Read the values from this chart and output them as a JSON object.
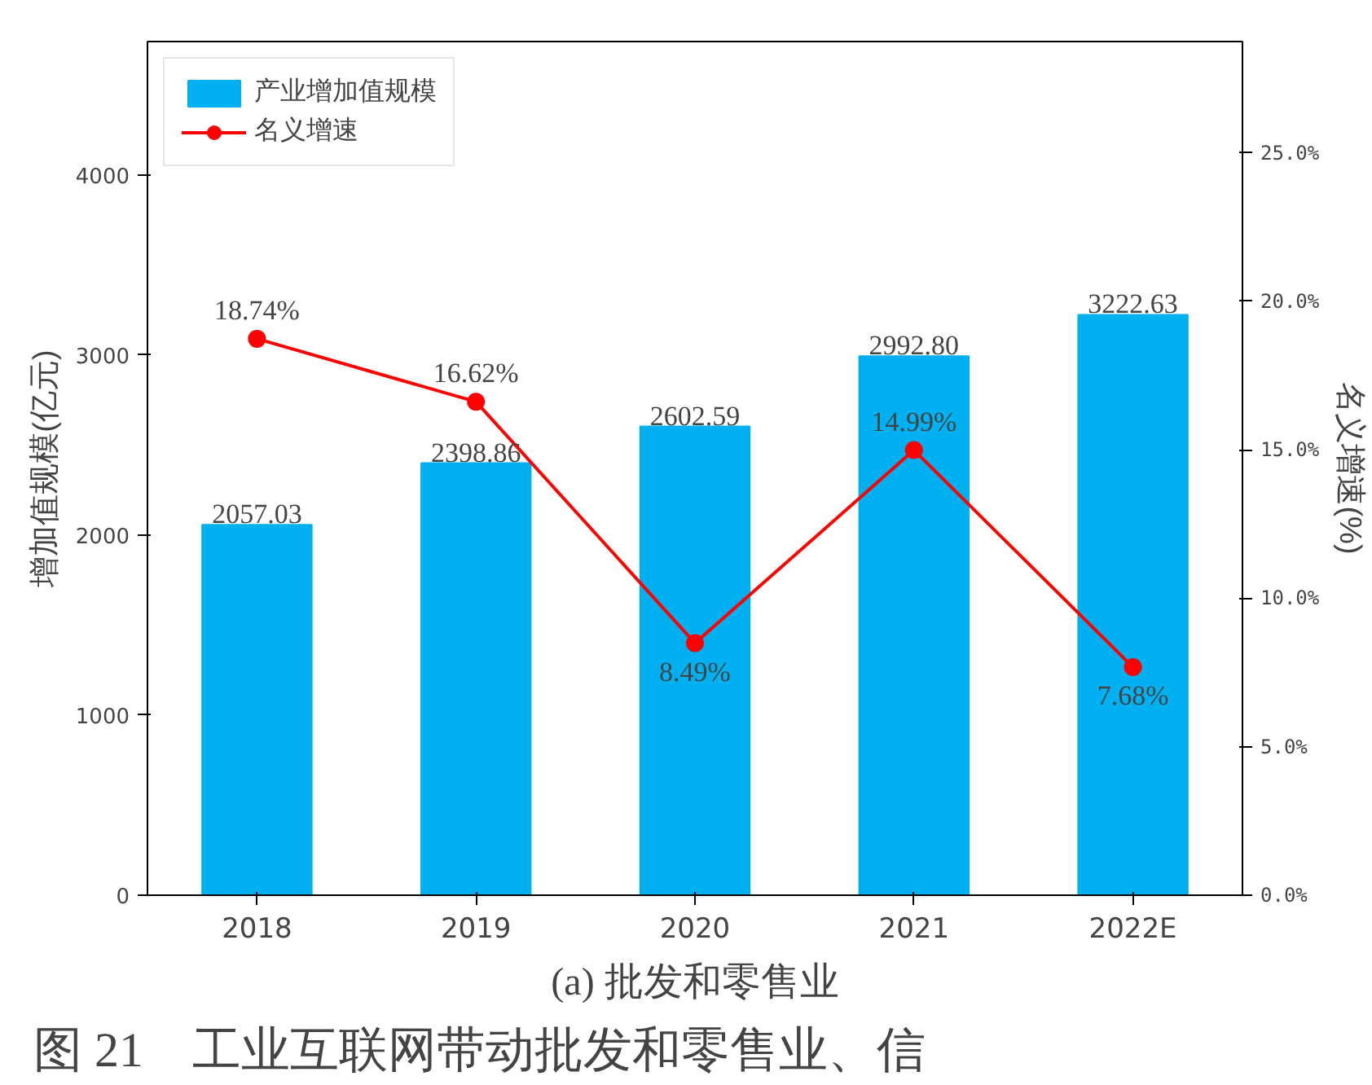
{
  "chart_data": {
    "type": "bar",
    "title": "(a) 批发和零售业",
    "ylabel": "增加值规模(亿元)",
    "y2label": "名义增速(%)",
    "categories": [
      "2018",
      "2019",
      "2020",
      "2021",
      "2022E"
    ],
    "series": [
      {
        "name": "产业增加值规模",
        "color": "#00b0f0",
        "values": [
          2057.03,
          2398.86,
          2602.59,
          2992.8,
          3222.63
        ],
        "value_labels": [
          "2057.03",
          "2398.86",
          "2602.59",
          "2992.80",
          "3222.63"
        ]
      },
      {
        "name": "名义增速",
        "type": "line",
        "axis": "y2",
        "color": "#ff0000",
        "marker": "circle",
        "values": [
          18.74,
          16.62,
          8.49,
          14.99,
          7.68
        ],
        "value_labels": [
          "18.74%",
          "16.62%",
          "8.49%",
          "14.99%",
          "7.68%"
        ]
      }
    ],
    "ylim": [
      0,
      4740
    ],
    "yticks": [
      0,
      1000,
      2000,
      3000,
      4000
    ],
    "y2lim": [
      0,
      28.75
    ],
    "y2ticks": [
      {
        "value": 0,
        "label": "0.0%"
      },
      {
        "value": 5,
        "label": "5.0%"
      },
      {
        "value": 10,
        "label": "10.0%"
      },
      {
        "value": 15,
        "label": "15.0%"
      },
      {
        "value": 20,
        "label": "20.0%"
      },
      {
        "value": 25,
        "label": "25.0%"
      }
    ],
    "legend": "top left",
    "grid": false,
    "annotations": [
      "图 21　工业互联网带动批发和零售业、信"
    ]
  }
}
